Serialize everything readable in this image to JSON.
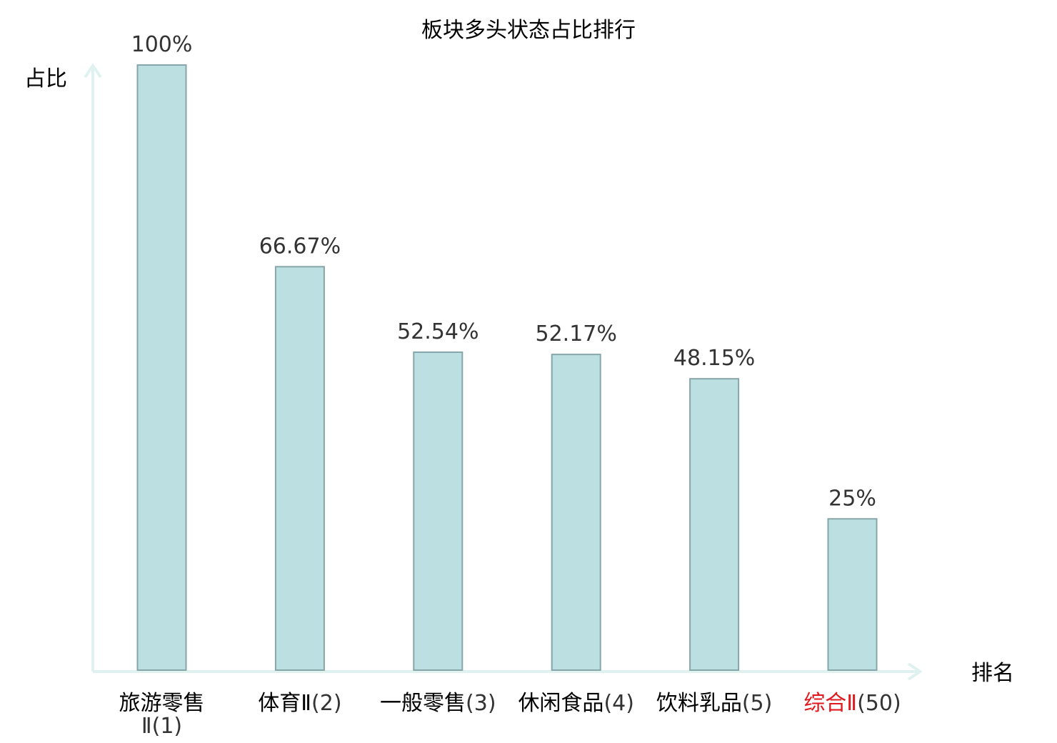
{
  "chart_data": {
    "type": "bar",
    "title": "板块多头状态占比排行",
    "xlabel": "排名",
    "ylabel": "占比",
    "categories": [
      {
        "name": "旅游零售Ⅱ",
        "rank": "(1)",
        "highlight": false
      },
      {
        "name": "体育Ⅱ",
        "rank": "(2)",
        "highlight": false
      },
      {
        "name": "一般零售",
        "rank": "(3)",
        "highlight": false
      },
      {
        "name": "休闲食品",
        "rank": "(4)",
        "highlight": false
      },
      {
        "name": "饮料乳品",
        "rank": "(5)",
        "highlight": false
      },
      {
        "name": "综合Ⅱ",
        "rank": "(50)",
        "highlight": true
      }
    ],
    "values": [
      100,
      66.67,
      52.54,
      52.17,
      48.15,
      25
    ],
    "value_labels": [
      "100%",
      "66.67%",
      "52.54%",
      "52.17%",
      "48.15%",
      "25%"
    ],
    "ylim": [
      0,
      100
    ],
    "grid": false,
    "colors": {
      "bar_fill": "#bce0e2",
      "bar_stroke": "#86a6aa",
      "axis": "#dff2ef",
      "highlight_text": "#e0191e",
      "value_text": "#333333"
    }
  }
}
